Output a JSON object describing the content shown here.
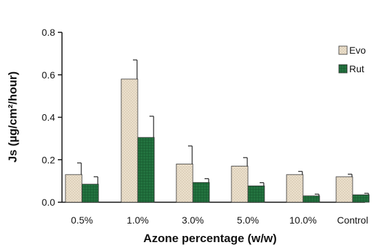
{
  "chart_data": {
    "type": "bar",
    "title": "",
    "xlabel": "Azone percentage (w/w)",
    "ylabel": "Js (µg/cm²/hour)",
    "ylim": [
      0,
      0.8
    ],
    "yticks": [
      "0.0",
      "0.2",
      "0.4",
      "0.6",
      "0.8"
    ],
    "grid": false,
    "legend_position": "top-right",
    "categories": [
      "0.5%",
      "1.0%",
      "3.0%",
      "5.0%",
      "10.0%",
      "Control"
    ],
    "series": [
      {
        "name": "Evo",
        "color": "#e8dcc8",
        "values": [
          0.13,
          0.58,
          0.18,
          0.17,
          0.13,
          0.12
        ],
        "errors": [
          0.055,
          0.09,
          0.085,
          0.04,
          0.015,
          0.012
        ]
      },
      {
        "name": "Rut",
        "color": "#1f6b3a",
        "values": [
          0.085,
          0.305,
          0.093,
          0.077,
          0.03,
          0.035
        ],
        "errors": [
          0.035,
          0.1,
          0.018,
          0.015,
          0.008,
          0.007
        ]
      }
    ]
  }
}
